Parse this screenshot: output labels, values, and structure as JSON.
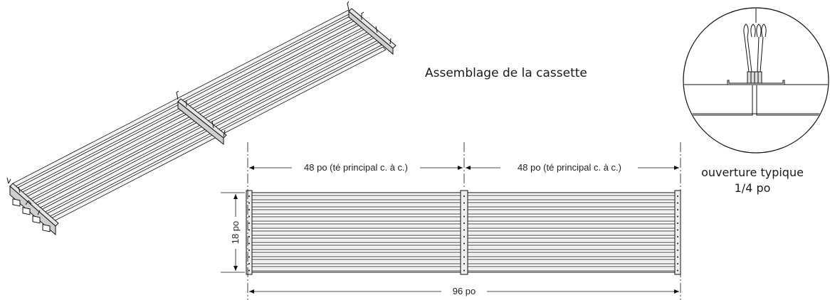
{
  "title": "Assemblage de la cassette",
  "dimensions": {
    "span_left": "48 po (té principal c. à c.)",
    "span_right": "48 po (té principal c. à c.)",
    "overall_length": "96 po",
    "width": "18 po"
  },
  "detail": {
    "line1": "ouverture typique",
    "line2": "1/4 po"
  },
  "colors": {
    "line": "#111111",
    "fill_light": "#f2f2f2",
    "fill_mid": "#d9d9d9"
  }
}
